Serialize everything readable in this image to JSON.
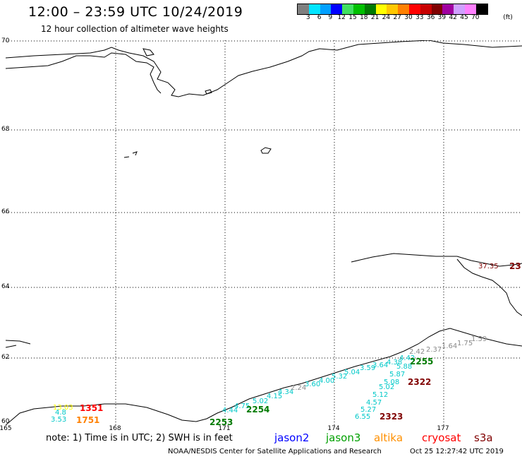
{
  "header": {
    "title": "12:00 – 23:59 UTC 10/24/2019",
    "subtitle": "12 hour collection of altimeter wave heights"
  },
  "color_scale": {
    "unit_label": "(ft)",
    "labels": [
      "3",
      "6",
      "9",
      "12",
      "15",
      "18",
      "21",
      "24",
      "27",
      "30",
      "33",
      "36",
      "39",
      "42",
      "45",
      "70"
    ],
    "colors": [
      "#7f7f7f",
      "#00e5ff",
      "#00a0ff",
      "#0000ff",
      "#40e060",
      "#00c000",
      "#007a00",
      "#ffff00",
      "#ffc800",
      "#ff8000",
      "#ff0000",
      "#c80000",
      "#800000",
      "#a000a0",
      "#d0a0ff",
      "#ff80ff",
      "#000000"
    ]
  },
  "map": {
    "lat_labels": [
      "70",
      "68",
      "66",
      "64",
      "62",
      "60"
    ],
    "lon_labels": [
      "165",
      "168",
      "171",
      "174",
      "177"
    ]
  },
  "wave_labels": [
    {
      "text": "4.44",
      "cls": "wave"
    },
    {
      "text": "4.75",
      "cls": "wave"
    },
    {
      "text": "5.02",
      "cls": "wave"
    },
    {
      "text": "4.15",
      "cls": "wave"
    },
    {
      "text": "4.34",
      "cls": "wave"
    },
    {
      "text": "2.24",
      "cls": "wave wgray"
    },
    {
      "text": "3.60",
      "cls": "wave"
    },
    {
      "text": "4.00",
      "cls": "wave"
    },
    {
      "text": "5.32",
      "cls": "wave"
    },
    {
      "text": "5.04",
      "cls": "wave"
    },
    {
      "text": "3.59",
      "cls": "wave"
    },
    {
      "text": "3.64",
      "cls": "wave"
    },
    {
      "text": "4.38",
      "cls": "wave"
    },
    {
      "text": "4.42",
      "cls": "wave"
    },
    {
      "text": "5.88",
      "cls": "wave"
    },
    {
      "text": "5.87",
      "cls": "wave"
    },
    {
      "text": "5.08",
      "cls": "wave"
    },
    {
      "text": "5.02",
      "cls": "wave"
    },
    {
      "text": "5.12",
      "cls": "wave"
    },
    {
      "text": "4.57",
      "cls": "wave"
    },
    {
      "text": "5.27",
      "cls": "wave"
    },
    {
      "text": "6.55",
      "cls": "wave"
    },
    {
      "text": "2.42",
      "cls": "wave wgray"
    },
    {
      "text": "2.37",
      "cls": "wave wgray"
    },
    {
      "text": "1.64",
      "cls": "wave wgray"
    },
    {
      "text": "1.75",
      "cls": "wave wgray"
    },
    {
      "text": "1.59",
      "cls": "wave wgray"
    },
    {
      "text": "3.53",
      "cls": "wave"
    },
    {
      "text": "4.8",
      "cls": "wave"
    }
  ],
  "pass_labels": [
    {
      "text": "2253",
      "color": "#007a00"
    },
    {
      "text": "2254",
      "color": "#007a00"
    },
    {
      "text": "2255",
      "color": "#007a00"
    },
    {
      "text": "2322",
      "color": "#800000"
    },
    {
      "text": "2323",
      "color": "#800000"
    },
    {
      "text": "1351",
      "color": "#ff0000"
    },
    {
      "text": "1751",
      "color": "#ff8000"
    },
    {
      "text": "13.03",
      "color": "#ffff00"
    },
    {
      "text": "37.35",
      "color": "#800000"
    },
    {
      "text": "23",
      "color": "#800000"
    }
  ],
  "footer": {
    "note": "note: 1) Time is in UTC; 2) SWH is in feet",
    "legend": [
      {
        "label": "jason2",
        "color": "#0000ff"
      },
      {
        "label": "jason3",
        "color": "#00a000"
      },
      {
        "label": "altika",
        "color": "#ff9000"
      },
      {
        "label": "cryosat",
        "color": "#ff0000"
      },
      {
        "label": "s3a",
        "color": "#800000"
      }
    ],
    "credit": "NOAA/NESDIS Center for Satellite Applications and Research",
    "timestamp": "Oct 25 12:27:42 UTC 2019"
  }
}
